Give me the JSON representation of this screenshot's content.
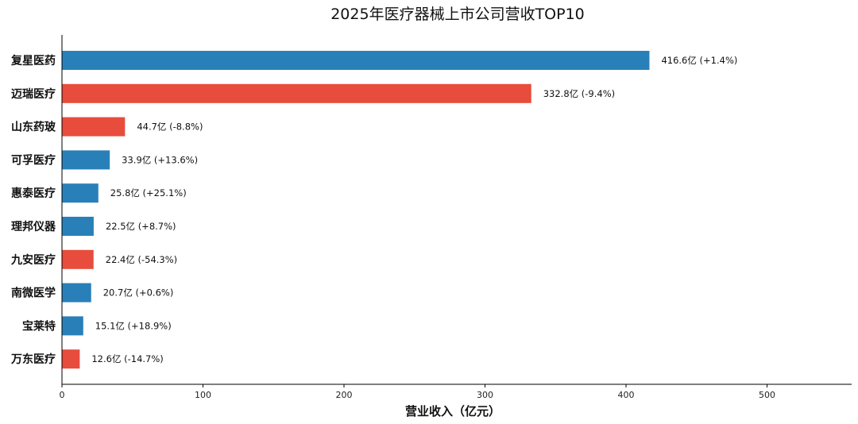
{
  "chart_data": {
    "type": "bar",
    "orientation": "horizontal",
    "title": "2025年医疗器械上市公司营收TOP10",
    "xlabel": "营业收入（亿元）",
    "ylabel": "",
    "xlim": [
      0,
      560
    ],
    "xticks": [
      0,
      100,
      200,
      300,
      400,
      500
    ],
    "grid": false,
    "categories": [
      "复星医药",
      "迈瑞医疗",
      "山东药玻",
      "可孚医疗",
      "惠泰医疗",
      "理邦仪器",
      "九安医疗",
      "南微医学",
      "宝莱特",
      "万东医疗"
    ],
    "values": [
      416.6,
      332.8,
      44.7,
      33.9,
      25.8,
      22.5,
      22.4,
      20.7,
      15.1,
      12.6
    ],
    "growth": [
      "+1.4%",
      "-9.4%",
      "-8.8%",
      "+13.6%",
      "+25.1%",
      "+8.7%",
      "-54.3%",
      "+0.6%",
      "+18.9%",
      "-14.7%"
    ],
    "data_labels": [
      "416.6亿 (+1.4%)",
      "332.8亿 (-9.4%)",
      "44.7亿 (-8.8%)",
      "33.9亿 (+13.6%)",
      "25.8亿 (+25.1%)",
      "22.5亿 (+8.7%)",
      "22.4亿 (-54.3%)",
      "20.7亿 (+0.6%)",
      "15.1亿 (+18.9%)",
      "12.6亿 (-14.7%)"
    ],
    "colors": {
      "positive": "#2980b9",
      "negative": "#e74c3c"
    }
  }
}
